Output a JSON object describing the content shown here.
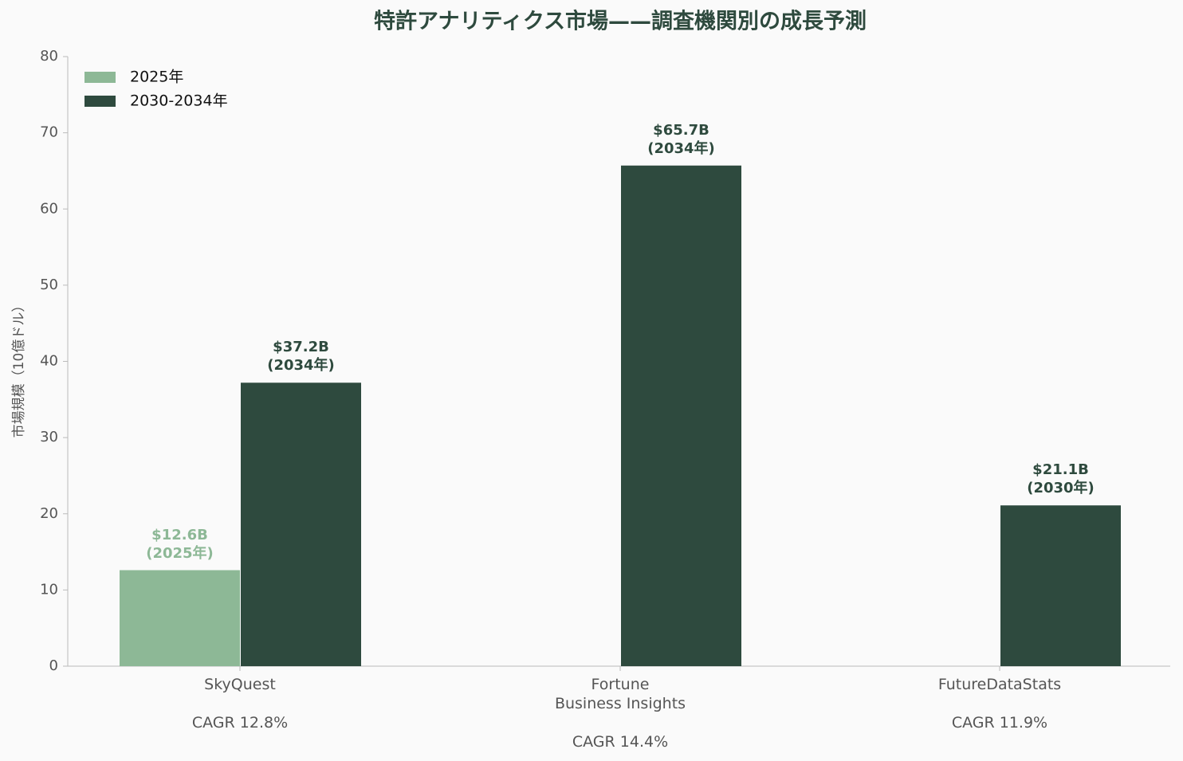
{
  "chart_data": {
    "type": "bar",
    "title": "特許アナリティクス市場——調査機関別の成長予測",
    "y_label": "市場規模（10億ドル）",
    "categories": [
      "SkyQuest\n\nCAGR 12.8%",
      "Fortune\nBusiness Insights\n\nCAGR 14.4%",
      "FutureDataStats\n\nCAGR 11.9%"
    ],
    "series": [
      {
        "name": "2025年",
        "color": "#8db896",
        "values": [
          12.6,
          null,
          null
        ],
        "value_labels": [
          "$12.6B\n(2025年)",
          null,
          null
        ]
      },
      {
        "name": "2030-2034年",
        "color": "#2e4a3e",
        "values": [
          37.2,
          65.7,
          21.1
        ],
        "value_labels": [
          "$37.2B\n(2034年)",
          "$65.7B\n(2034年)",
          "$21.1B\n(2030年)"
        ]
      }
    ],
    "ylim": [
      0,
      80
    ],
    "yticks": [
      0,
      10,
      20,
      30,
      40,
      50,
      60,
      70,
      80
    ],
    "legend": "upper left",
    "grid": false
  }
}
